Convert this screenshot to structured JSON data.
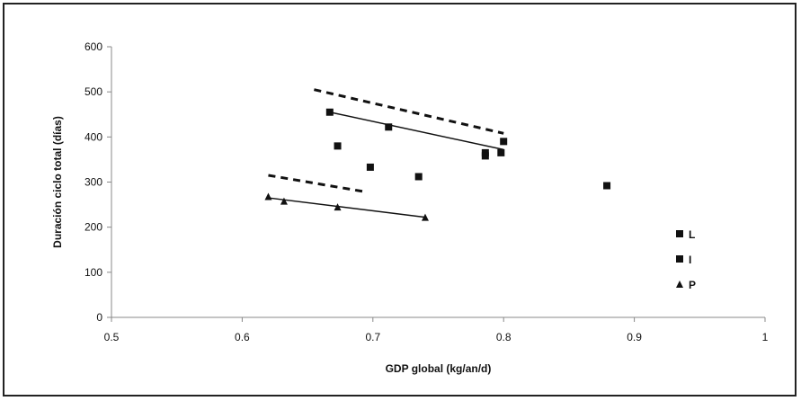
{
  "chart_data": {
    "type": "scatter",
    "title": "",
    "xlabel": "GDP global (kg/an/d)",
    "ylabel": "Duración ciclo total (días)",
    "xlim": [
      0.5,
      1
    ],
    "ylim": [
      0,
      600
    ],
    "xticks": [
      0.5,
      0.6,
      0.7,
      0.8,
      0.9,
      1
    ],
    "xtick_labels": [
      "0.5",
      "0.6",
      "0.7",
      "0.8",
      "0.9",
      "1"
    ],
    "yticks": [
      0,
      100,
      200,
      300,
      400,
      500,
      600
    ],
    "ytick_labels": [
      "0",
      "100",
      "200",
      "300",
      "400",
      "500",
      "600"
    ],
    "grid": false,
    "legend_position": "right",
    "colors": {
      "marker": "#111111",
      "trend": "#111111",
      "frame": "#222222"
    },
    "series": [
      {
        "name": "L",
        "marker": "square",
        "points": [
          [
            0.667,
            455
          ],
          [
            0.712,
            422
          ],
          [
            0.786,
            365
          ],
          [
            0.786,
            358
          ],
          [
            0.798,
            365
          ],
          [
            0.8,
            390
          ]
        ],
        "trend": {
          "x": [
            0.667,
            0.8
          ],
          "y": [
            455,
            372
          ],
          "style": "solid"
        }
      },
      {
        "name": "I",
        "marker": "square",
        "points": [
          [
            0.673,
            380
          ],
          [
            0.698,
            333
          ],
          [
            0.735,
            312
          ],
          [
            0.879,
            292
          ]
        ],
        "trend": {
          "x": [
            0.655,
            0.8
          ],
          "y": [
            505,
            408
          ],
          "style": "dashed"
        }
      },
      {
        "name": "P",
        "marker": "triangle",
        "points": [
          [
            0.62,
            268
          ],
          [
            0.632,
            258
          ],
          [
            0.673,
            245
          ],
          [
            0.74,
            222
          ]
        ],
        "trend_main": {
          "x": [
            0.62,
            0.74
          ],
          "y": [
            265,
            222
          ],
          "style": "solid"
        },
        "trend_alt": {
          "x": [
            0.62,
            0.695
          ],
          "y": [
            315,
            278
          ],
          "style": "dashed"
        }
      }
    ]
  }
}
